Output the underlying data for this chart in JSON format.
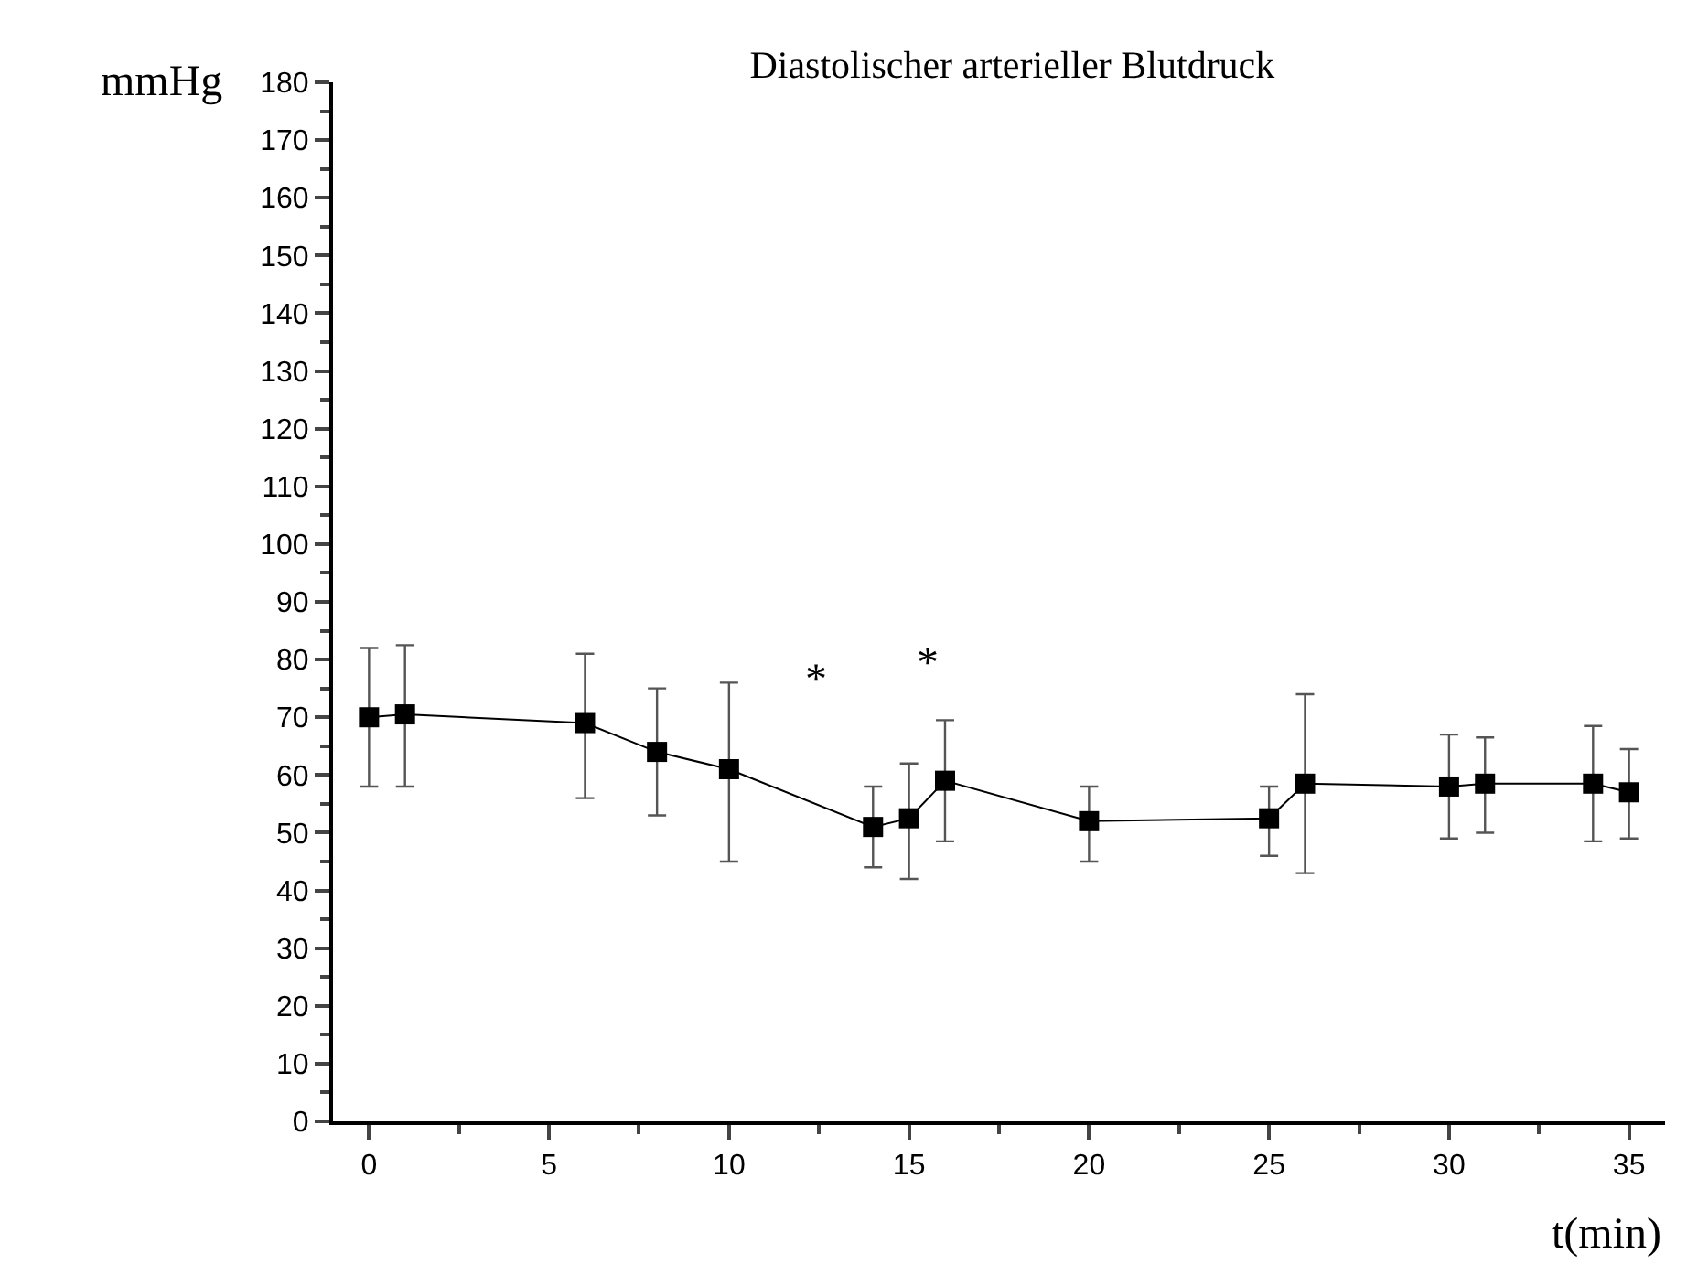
{
  "chart_data": {
    "type": "line",
    "title": "Diastolischer arterieller Blutdruck",
    "xlabel": "t(min)",
    "ylabel": "mmHg",
    "x": [
      0,
      1,
      6,
      8,
      10,
      14,
      15,
      16,
      20,
      25,
      26,
      30,
      31,
      34,
      35
    ],
    "series": [
      {
        "color": "#000000",
        "values": [
          70,
          70.5,
          69,
          64,
          61,
          51,
          52.5,
          59,
          52,
          52.5,
          58.5,
          58,
          58.5,
          58.5,
          57
        ],
        "errors": [
          [
            58,
            82
          ],
          [
            58,
            82.5
          ],
          [
            56,
            81
          ],
          [
            53,
            75
          ],
          [
            45,
            76
          ],
          [
            44,
            58
          ],
          [
            42,
            62
          ],
          [
            48.5,
            69.5
          ],
          [
            45,
            58
          ],
          [
            46,
            58
          ],
          [
            43,
            74
          ],
          [
            49,
            67
          ],
          [
            50,
            66.5
          ],
          [
            48.5,
            68.5
          ],
          [
            49,
            64.5
          ]
        ]
      }
    ],
    "marker": "square",
    "line_style": "solid",
    "legend": false,
    "xlim": [
      -1,
      36
    ],
    "xticks": [
      0,
      5,
      10,
      15,
      20,
      25,
      30,
      35
    ],
    "ylim": [
      0,
      180
    ],
    "yticks": [
      0,
      10,
      20,
      30,
      40,
      50,
      60,
      70,
      80,
      90,
      100,
      110,
      120,
      130,
      140,
      150,
      160,
      170,
      180
    ],
    "annotations": [
      "*",
      "*"
    ]
  }
}
